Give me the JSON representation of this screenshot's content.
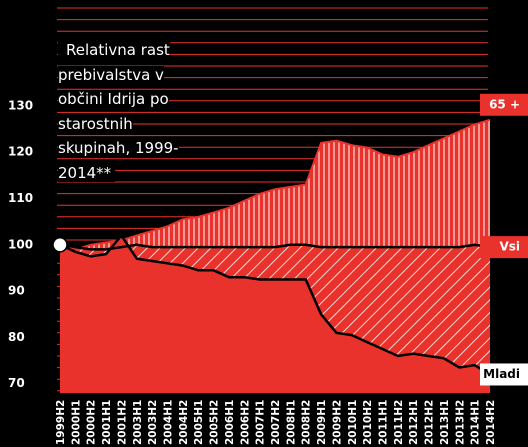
{
  "chart_data": {
    "type": "area",
    "title": "Relativna rast prebivalstva v občini Idrija po starostnih skupinah, 1999-2014**",
    "categories": [
      "1999H2",
      "2000H1",
      "2000H2",
      "2001H1",
      "2001H2",
      "2003H1",
      "2003H2",
      "2004H1",
      "2004H2",
      "2005H1",
      "2005H2",
      "2006H1",
      "2006H2",
      "2007H1",
      "2007H2",
      "2008H1",
      "2008H2",
      "2009H1",
      "2009H2",
      "2010H1",
      "2010H2",
      "2011H1",
      "2011H2",
      "2012H1",
      "2012H2",
      "2013H1",
      "2013H2",
      "2014H1",
      "2014H2"
    ],
    "series": [
      {
        "name": "65 +",
        "color": "#e8322b",
        "label_fill": "#e8322b",
        "label_color": "#ffffff",
        "values": [
          99.5,
          99,
          100,
          100.5,
          101,
          102,
          103,
          104,
          105.5,
          106,
          107,
          108,
          109.5,
          111,
          112,
          112.5,
          113,
          122,
          122.5,
          121.5,
          121,
          119.5,
          119,
          120,
          121.5,
          123,
          124.5,
          126,
          127
        ]
      },
      {
        "name": "Vsi",
        "color": "#000000",
        "label_fill": "#e8322b",
        "label_color": "#ffffff",
        "values": [
          100,
          99.5,
          99,
          99,
          99.5,
          100,
          99.5,
          99.5,
          99.5,
          99.5,
          99.5,
          99.5,
          99.5,
          99.5,
          99.5,
          100,
          100,
          99.5,
          99.5,
          99.5,
          99.5,
          99.5,
          99.5,
          99.5,
          99.5,
          99.5,
          99.5,
          100,
          99.5
        ]
      },
      {
        "name": "Mladi",
        "color": "#e8322b",
        "label_fill": "#ffffff",
        "label_color": "#000000",
        "values": [
          100,
          98.5,
          97.5,
          98,
          102,
          97,
          96.5,
          96,
          95.5,
          94.5,
          94.5,
          93,
          93,
          92.5,
          92.5,
          92.5,
          92.5,
          85,
          81,
          80.5,
          79,
          77.5,
          76,
          76.5,
          76,
          75.5,
          73.5,
          74,
          72
        ]
      }
    ],
    "ylim": [
      68,
      152
    ],
    "yticks": [
      70,
      80,
      90,
      100,
      110,
      120,
      130
    ]
  }
}
